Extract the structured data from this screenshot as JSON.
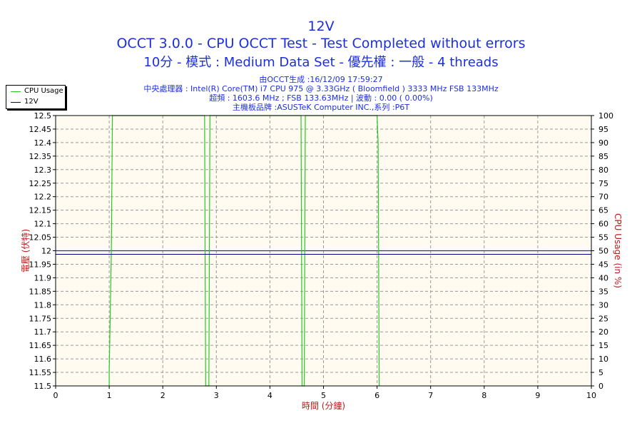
{
  "header": {
    "title": "12V",
    "subtitle1": "OCCT 3.0.0 - CPU OCCT Test - Test Completed without errors",
    "subtitle2": "10分 - 模式 : Medium Data Set - 優先權 : 一般 - 4 threads",
    "info": [
      "由OCCT生成 :16/12/09 17:59:27",
      "中央處理器 : Intel(R) Core(TM) i7 CPU 975 @ 3.33GHz ( Bloomfield ) 3333 MHz FSB 133MHz",
      "超頻 : 1603.6 MHz ; FSB 133.63MHz | 波動 : 0.00 ( 0.00%)",
      "主機板品牌 :ASUSTeK Computer INC.,系列 :P6T"
    ]
  },
  "legend": {
    "items": [
      {
        "label": "CPU Usage",
        "color": "#22cc22"
      },
      {
        "label": "12V",
        "color": "#000080"
      }
    ]
  },
  "colors": {
    "plot_bg": "#fffbf0",
    "grid": "#999999",
    "axis_label": "#c01818",
    "voltage_line": "#2b2bd0",
    "cpu_line": "#22cc22"
  },
  "chart_data": {
    "type": "line",
    "xlabel": "時間 (分鐘)",
    "ylabel": "電壓 (伏特)",
    "y2label": "CPU Usage (in %)",
    "xlim": [
      0,
      10
    ],
    "ylim": [
      11.5,
      12.5
    ],
    "y2lim": [
      0,
      100
    ],
    "xticks": [
      "0",
      "1",
      "2",
      "3",
      "4",
      "5",
      "6",
      "7",
      "8",
      "9",
      "10"
    ],
    "yticks": [
      "11.5",
      "11.55",
      "11.6",
      "11.65",
      "11.7",
      "11.75",
      "11.8",
      "11.85",
      "11.9",
      "11.95",
      "12",
      "12.05",
      "12.1",
      "12.15",
      "12.2",
      "12.25",
      "12.3",
      "12.35",
      "12.4",
      "12.45",
      "12.5"
    ],
    "y2ticks": [
      "0",
      "5",
      "10",
      "15",
      "20",
      "25",
      "30",
      "35",
      "40",
      "45",
      "50",
      "55",
      "60",
      "65",
      "70",
      "75",
      "80",
      "85",
      "90",
      "95",
      "100"
    ],
    "grid": true,
    "series": [
      {
        "name": "12V",
        "axis": "left",
        "x": [
          0,
          10
        ],
        "y": [
          12.0,
          12.0
        ]
      },
      {
        "name": "CPU Usage",
        "axis": "right",
        "x": [
          1.0,
          1.0,
          1.04,
          1.06,
          2.78,
          2.8,
          2.86,
          2.88,
          4.58,
          4.6,
          4.64,
          4.66,
          6.0,
          6.02,
          6.04
        ],
        "y": [
          0,
          5,
          50,
          100,
          100,
          0,
          0,
          100,
          100,
          0,
          0,
          100,
          100,
          90,
          0
        ]
      }
    ]
  }
}
